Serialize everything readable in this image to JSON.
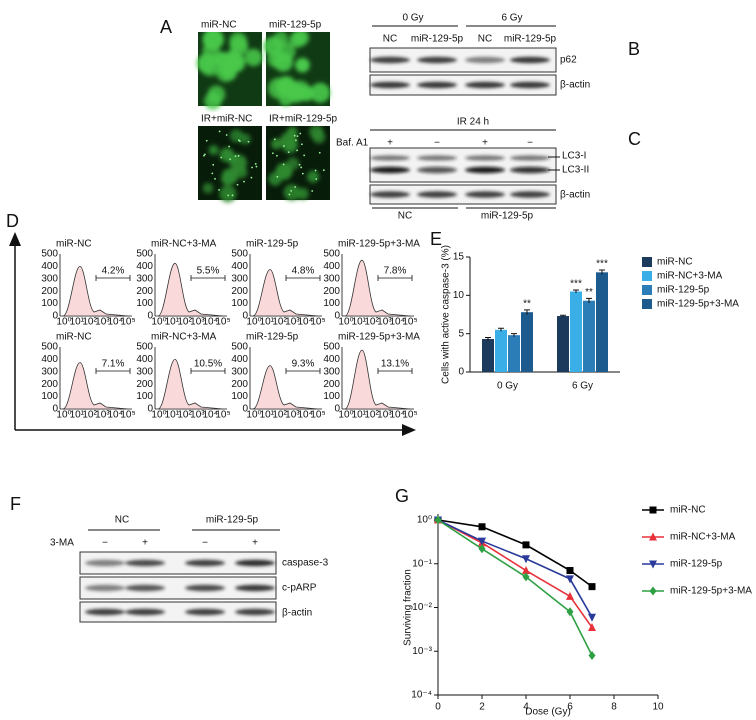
{
  "panels": {
    "A": {
      "letter": "A",
      "images": [
        "miR-NC",
        "miR-129-5p",
        "IR+miR-NC",
        "IR+miR-129-5p"
      ]
    },
    "B": {
      "letter": "B",
      "doses": [
        "0 Gy",
        "6 Gy"
      ],
      "lanes": [
        "NC",
        "miR-129-5p",
        "NC",
        "miR-129-5p"
      ],
      "rows": [
        "p62",
        "β-actin"
      ]
    },
    "C": {
      "letter": "C",
      "header": "IR 24 h",
      "treatment": "Baf. A1",
      "signs": [
        "+",
        "−",
        "+",
        "−"
      ],
      "bands": [
        "LC3-I",
        "LC3-II"
      ],
      "loading": "β-actin",
      "groups": [
        "NC",
        "miR-129-5p"
      ]
    },
    "D": {
      "letter": "D",
      "y_ticks": [
        "0",
        "100",
        "200",
        "300",
        "400",
        "500"
      ],
      "x_ticks": [
        "10⁰",
        "10¹",
        "10²",
        "10³",
        "10⁴",
        "10⁵"
      ],
      "histograms": [
        {
          "label": "miR-NC",
          "percent": "4.2%"
        },
        {
          "label": "miR-NC+3-MA",
          "percent": "5.5%"
        },
        {
          "label": "miR-129-5p",
          "percent": "4.8%"
        },
        {
          "label": "miR-129-5p+3-MA",
          "percent": "7.8%"
        },
        {
          "label": "miR-NC",
          "percent": "7.1%"
        },
        {
          "label": "miR-NC+3-MA",
          "percent": "10.5%"
        },
        {
          "label": "miR-129-5p",
          "percent": "9.3%"
        },
        {
          "label": "miR-129-5p+3-MA",
          "percent": "13.1%"
        }
      ]
    },
    "F": {
      "letter": "F",
      "groups": [
        "NC",
        "miR-129-5p"
      ],
      "treatment": "3-MA",
      "signs": [
        "−",
        "+",
        "−",
        "+"
      ],
      "rows": [
        "caspase-3",
        "c-pARP",
        "β-actin"
      ]
    }
  },
  "chart_data": [
    {
      "type": "bar",
      "panel": "E",
      "y_label": "Cells with active caspase-3 (%)",
      "categories": [
        "0 Gy",
        "6 Gy"
      ],
      "ylim": [
        0,
        15
      ],
      "yticks": [
        0,
        5,
        10,
        15
      ],
      "series": [
        {
          "name": "miR-NC",
          "color": "#1b3a5c",
          "values": [
            4.3,
            7.3
          ],
          "errors": [
            0.2,
            0.1
          ],
          "significance": [
            null,
            null
          ]
        },
        {
          "name": "miR-NC+3-MA",
          "color": "#3aaee6",
          "values": [
            5.5,
            10.5
          ],
          "errors": [
            0.2,
            0.2
          ],
          "significance": [
            null,
            "***"
          ]
        },
        {
          "name": "miR-129-5p",
          "color": "#2b7db8",
          "values": [
            4.8,
            9.3
          ],
          "errors": [
            0.2,
            0.3
          ],
          "significance": [
            null,
            "**"
          ]
        },
        {
          "name": "miR-129-5p+3-MA",
          "color": "#1d5b8f",
          "values": [
            7.8,
            13.0
          ],
          "errors": [
            0.3,
            0.3
          ],
          "significance": [
            "**",
            "***"
          ]
        }
      ]
    },
    {
      "type": "line",
      "panel": "G",
      "x_label": "Dose (Gy)",
      "y_label": "Surviving fraction",
      "log_y": true,
      "x": [
        0,
        2,
        4,
        6,
        7
      ],
      "xlim": [
        0,
        10
      ],
      "xticks": [
        0,
        2,
        4,
        6,
        8,
        10
      ],
      "ylim": [
        0.0001,
        1
      ],
      "yticks": [
        {
          "value": 1,
          "label": "10⁰"
        },
        {
          "value": 0.1,
          "label": "10⁻¹"
        },
        {
          "value": 0.01,
          "label": "10⁻²"
        },
        {
          "value": 0.001,
          "label": "10⁻³"
        },
        {
          "value": 0.0001,
          "label": "10⁻⁴"
        }
      ],
      "series": [
        {
          "name": "miR-NC",
          "color": "#000000",
          "marker": "square",
          "values": [
            1,
            0.7,
            0.27,
            0.07,
            0.03
          ]
        },
        {
          "name": "miR-NC+3-MA",
          "color": "#e8303a",
          "marker": "triangle",
          "values": [
            1,
            0.3,
            0.07,
            0.018,
            0.0035
          ]
        },
        {
          "name": "miR-129-5p",
          "color": "#2a3a9a",
          "marker": "triangle-down",
          "values": [
            1,
            0.33,
            0.13,
            0.045,
            0.006
          ]
        },
        {
          "name": "miR-129-5p+3-MA",
          "color": "#2ea043",
          "marker": "diamond",
          "values": [
            1,
            0.22,
            0.05,
            0.008,
            0.0008
          ]
        }
      ]
    }
  ]
}
